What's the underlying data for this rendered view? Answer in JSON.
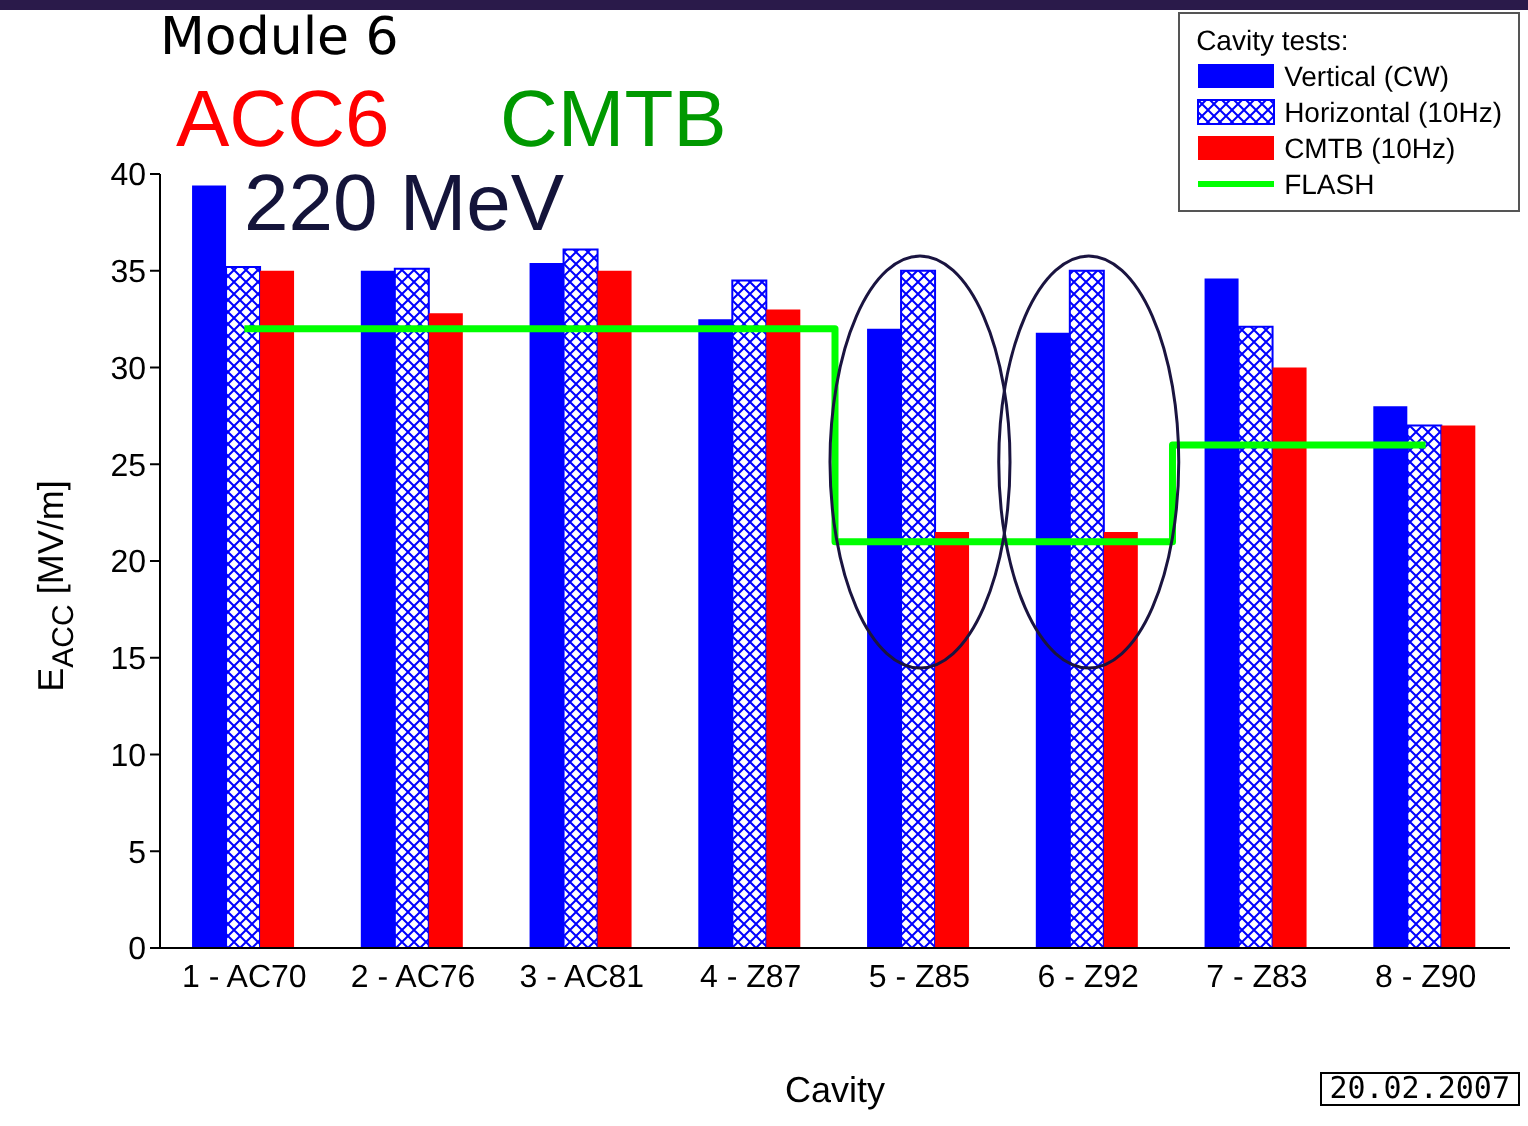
{
  "chart_data": {
    "type": "bar",
    "title": "Module 6",
    "xlabel": "Cavity",
    "ylabel": "E$_{ACC}$ [MV/m]",
    "legend_title": "Cavity tests:",
    "annotations": [
      "ACC6",
      "CMTB",
      "220 MeV",
      "20.02.2007"
    ],
    "categories": [
      "1 - AC70",
      "2 - AC76",
      "3 - AC81",
      "4 - Z87",
      "5 - Z85",
      "6 - Z92",
      "7 - Z83",
      "8 - Z90"
    ],
    "series": [
      {
        "name": "Vertical (CW)",
        "color": "#0000ff",
        "values": [
          39.4,
          35,
          35.4,
          32.5,
          32,
          31.8,
          34.6,
          28
        ]
      },
      {
        "name": "Horizontal (10Hz)",
        "color": "#0000ff",
        "values": [
          35.2,
          35.1,
          36.1,
          34.5,
          35,
          35,
          32.1,
          27
        ]
      },
      {
        "name": "CMTB (10Hz)",
        "color": "#ff0000",
        "values": [
          35,
          32.8,
          35,
          33,
          21.5,
          21.5,
          30,
          27
        ]
      },
      {
        "name": "FLASH",
        "type": "step",
        "color": "#00ff00",
        "values": [
          32,
          32,
          32,
          32,
          21,
          21,
          26,
          26
        ]
      }
    ],
    "ylim": [
      0,
      40
    ],
    "yticks": [
      0,
      5,
      10,
      15,
      20,
      25,
      30,
      35,
      40
    ],
    "grid": false,
    "legend": "top right"
  }
}
